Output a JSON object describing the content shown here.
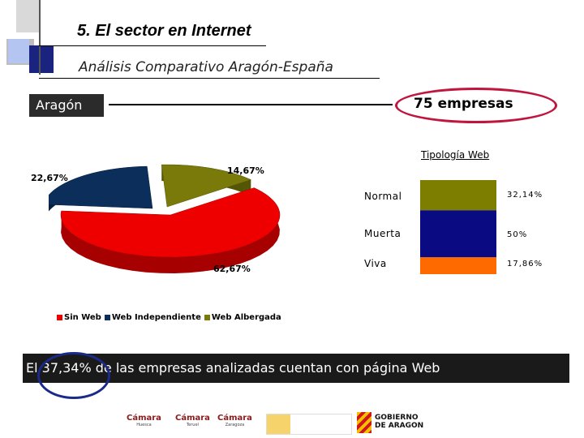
{
  "header": {
    "title": "5. El sector en Internet",
    "subtitle": "Análisis Comparativo Aragón-España"
  },
  "region": {
    "label": "Aragón",
    "count": "75 empresas"
  },
  "chart_data": [
    {
      "type": "pie",
      "labels": [
        "Sin Web",
        "Web Independiente",
        "Web Albergada"
      ],
      "values": [
        62.67,
        22.67,
        14.67
      ],
      "value_labels": [
        "62,67%",
        "22,67%",
        "14,67%"
      ],
      "colors": [
        "#ee0000",
        "#0b2f5a",
        "#7a7a0a"
      ],
      "legend_position": "bottom"
    },
    {
      "type": "bar",
      "title": "Tipología Web",
      "categories": [
        "Normal",
        "Muerta",
        "Viva"
      ],
      "values": [
        32.14,
        50,
        17.86
      ],
      "value_labels": [
        "32,14%",
        "50%",
        "17,86%"
      ],
      "colors": [
        "#7d7d00",
        "#0a0a82",
        "#ff6a00"
      ],
      "stacked": true
    }
  ],
  "banner": {
    "text": "El 37,34% de las empresas analizadas cuentan con página Web"
  },
  "logos": {
    "camara1": "Cámara",
    "camara1_sub": "Huesca",
    "camara2": "Cámara",
    "camara2_sub": "Teruel",
    "camara3": "Cámara",
    "camara3_sub": "Zaragoza",
    "gobierno": "GOBIERNO DE ARAGON"
  },
  "colors": {
    "accent_red": "#c0163d",
    "accent_blue": "#1a2a8a"
  }
}
